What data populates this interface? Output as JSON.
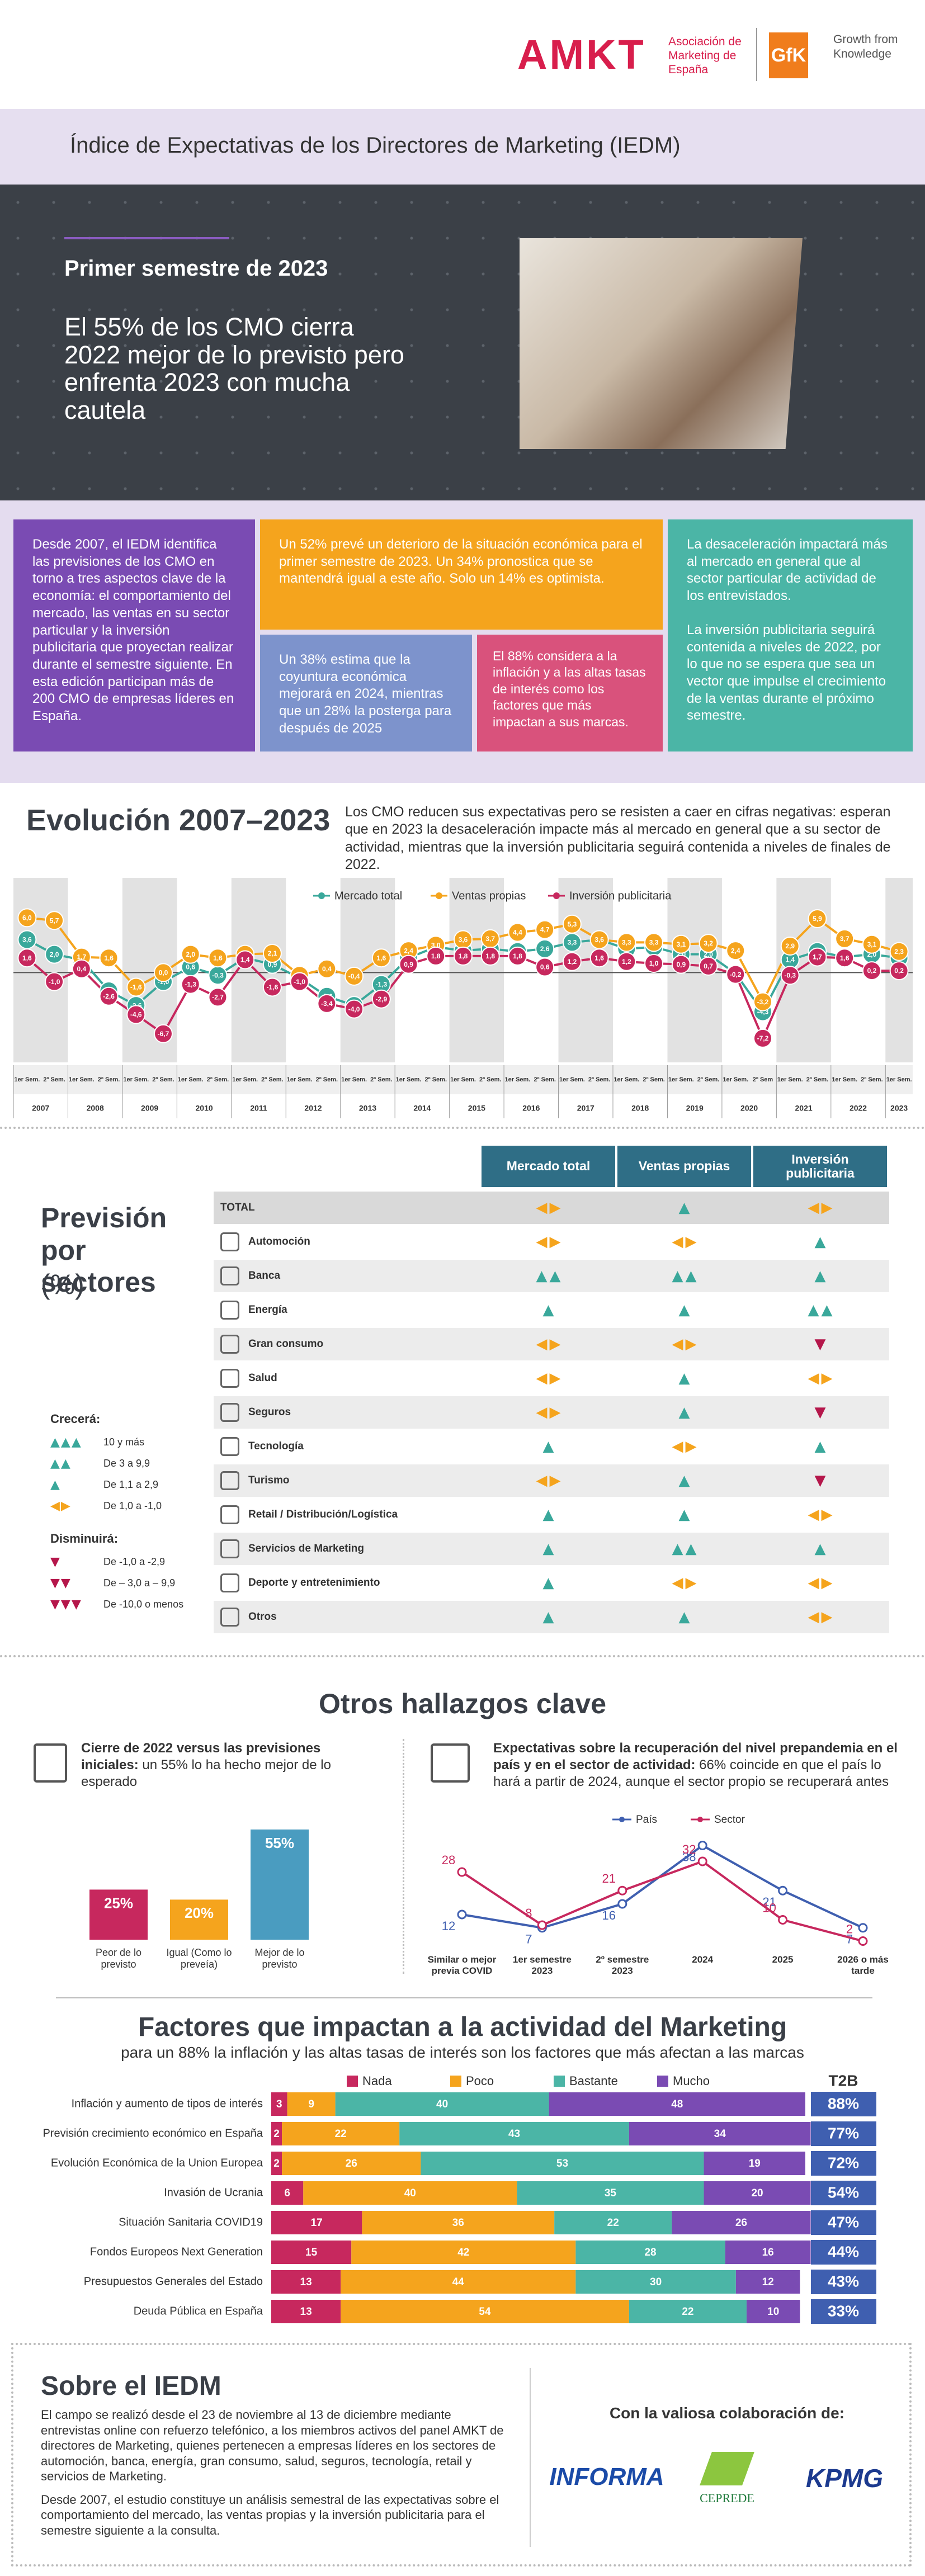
{
  "header": {
    "brand": "AMKT",
    "brand_caption": "Asociación de Marketing de España",
    "partner": "GfK",
    "partner_caption": "Growth from Knowledge"
  },
  "title": "Índice de Expectativas de los Directores de Marketing (IEDM)",
  "hero": {
    "kicker": "Primer semestre de 2023",
    "headline": "El 55% de los CMO cierra 2022 mejor de lo previsto pero enfrenta 2023 con mucha cautela"
  },
  "highlights": {
    "intro": "Desde 2007, el IEDM identifica las previsiones de los CMO en torno a tres aspectos clave de la economía: el comportamiento del mercado, las ventas en su sector particular y la inversión publicitaria que proyectan realizar durante el semestre siguiente. En esta edición participan más de 200 CMO de empresas líderes en España.",
    "economy_2023": "Un 52% prevé un deterioro de la situación económica para el primer semestre de 2023. Un 34% pronostica que se mantendrá igual a este año. Solo un 14% es optimista.",
    "economy_2024": "Un 38% estima que la coyuntura económica mejorará en 2024, mientras que un 28% la posterga para después de 2025",
    "factors": "El 88% considera a la inflación y a las altas tasas de interés como los factores que más impactan a sus marcas.",
    "outlook": [
      "La desaceleración impactará más al mercado en general que al sector particular de actividad de los entrevistados.",
      "La inversión publicitaria seguirá contenida a niveles de 2022, por lo que no se espera que sea un vector que impulse el crecimiento de la ventas durante el próximo semestre."
    ]
  },
  "sectors": {
    "title": "Previsión por sectores",
    "unit": "(%)",
    "columns": [
      "Mercado total",
      "Ventas propias",
      "Inversión publicitaria"
    ],
    "rows": [
      {
        "label": "TOTAL",
        "cells": [
          "◀▶",
          "▲",
          "◀▶"
        ]
      },
      {
        "label": "Automoción",
        "cells": [
          "◀▶",
          "◀▶",
          "▲"
        ]
      },
      {
        "label": "Banca",
        "cells": [
          "▲▲",
          "▲▲",
          "▲"
        ]
      },
      {
        "label": "Energía",
        "cells": [
          "▲",
          "▲",
          "▲▲"
        ]
      },
      {
        "label": "Gran consumo",
        "cells": [
          "◀▶",
          "◀▶",
          "▼"
        ]
      },
      {
        "label": "Salud",
        "cells": [
          "◀▶",
          "▲",
          "◀▶"
        ]
      },
      {
        "label": "Seguros",
        "cells": [
          "◀▶",
          "▲",
          "▼"
        ]
      },
      {
        "label": "Tecnología",
        "cells": [
          "▲",
          "◀▶",
          "▲"
        ]
      },
      {
        "label": "Turismo",
        "cells": [
          "◀▶",
          "▲",
          "▼"
        ]
      },
      {
        "label": "Retail / Distribución/Logística",
        "cells": [
          "▲",
          "▲",
          "◀▶"
        ]
      },
      {
        "label": "Servicios de Marketing",
        "cells": [
          "▲",
          "▲▲",
          "▲"
        ]
      },
      {
        "label": "Deporte y entretenimiento",
        "cells": [
          "▲",
          "◀▶",
          "◀▶"
        ]
      },
      {
        "label": "Otros",
        "cells": [
          "▲",
          "▲",
          "◀▶"
        ]
      }
    ],
    "legend": [
      {
        "title": "Crecerá:",
        "items": [
          {
            "symbol": "▲▲▲",
            "label": "10 y más",
            "color": "#3aa89b"
          },
          {
            "symbol": "▲▲",
            "label": "De 3 a 9,9",
            "color": "#3aa89b"
          },
          {
            "symbol": "▲",
            "label": "De 1,1 a 2,9",
            "color": "#3aa89b"
          },
          {
            "symbol": "◀▶",
            "label": "De 1,0 a -1,0",
            "color": "#f5a41d"
          }
        ]
      },
      {
        "title": "Disminuirá:",
        "items": [
          {
            "symbol": "▼",
            "label": "De -1,0 a -2,9",
            "color": "#b5174b"
          },
          {
            "symbol": "▼▼",
            "label": "De – 3,0 a – 9,9",
            "color": "#b5174b"
          },
          {
            "symbol": "▼▼▼",
            "label": "De -10,0 o menos",
            "color": "#b5174b"
          }
        ]
      }
    ]
  },
  "findings": {
    "title": "Otros hallazgos clave"
  },
  "about": {
    "title": "Sobre el IEDM",
    "paragraphs": [
      "El campo se realizó desde el 23 de noviembre al 13 de diciembre mediante entrevistas online con refuerzo telefónico, a los miembros activos del panel AMKT de directores de Marketing, quienes pertenecen a empresas líderes en los sectores de automoción, banca, energía, gran consumo, salud, seguros, tecnología, retail y servicios de Marketing.",
      "Desde 2007, el estudio constituye un análisis semestral de las expectativas sobre el comportamiento del mercado, las ventas propias y la inversión publicitaria para el semestre siguiente a la consulta."
    ]
  },
  "sponsors": {
    "title": "Con la valiosa colaboración de:",
    "logos": [
      "INFORMA",
      "CEPREDE",
      "KPMG"
    ]
  },
  "chart_data": [
    {
      "type": "line",
      "title": "Evolución 2007–2023",
      "subtitle": "Los CMO reducen sus expectativas pero se resisten a caer en cifras negativas: esperan que en 2023 la desaceleración impacte más al mercado en general que a su sector de actividad, mientras que la inversión publicitaria seguirá contenida a niveles de finales de 2022.",
      "categories": [
        "1er Sem.",
        "2º Sem.",
        "1er Sem.",
        "2º Sem.",
        "1er Sem.",
        "2º Sem.",
        "1er Sem.",
        "2º Sem.",
        "1er Sem.",
        "2º Sem.",
        "1er Sem.",
        "2º Sem.",
        "1er Sem.",
        "2º Sem.",
        "1er Sem.",
        "2º Sem.",
        "1er Sem.",
        "2º Sem.",
        "1er Sem.",
        "2º Sem.",
        "1er Sem.",
        "2º Sem.",
        "1er Sem.",
        "2º Sem.",
        "1er Sem.",
        "2º Sem.",
        "1er Sem.",
        "2º Sem",
        "1er Sem.",
        "2º Sem.",
        "1er Sem.",
        "2º Sem.",
        "1er Sem."
      ],
      "years": [
        "2007",
        "2008",
        "2009",
        "2010",
        "2011",
        "2012",
        "2013",
        "2014",
        "2015",
        "2016",
        "2017",
        "2018",
        "2019",
        "2020",
        "2021",
        "2022",
        "2023"
      ],
      "ylim": [
        -8,
        7
      ],
      "series": [
        {
          "name": "Mercado total",
          "color": "#3aa89b",
          "values": [
            3.6,
            2.0,
            1.4,
            -2.0,
            -3.6,
            -1.0,
            0.6,
            -0.3,
            1.6,
            0.9,
            -0.6,
            -2.6,
            -3.6,
            -1.3,
            1.6,
            2.8,
            2.4,
            2.6,
            2.3,
            2.6,
            3.3,
            3.6,
            2.6,
            2.8,
            2.0,
            2.0,
            -0.1,
            -4.3,
            1.4,
            2.3,
            1.7,
            2.0,
            1.6
          ],
          "value_labels": [
            "3,6",
            "2,0",
            "1,4",
            "-2,0",
            "-3,6",
            "-1,0",
            "0,6",
            "-0,3",
            "1,6",
            "0,9",
            "-0,6",
            "-2,6",
            "-3,6",
            "-1,3",
            "1,6",
            "2,8",
            "2,4",
            "2,6",
            "2,3",
            "2,6",
            "3,3",
            "3,6",
            "2,6",
            "2,8",
            "2,0",
            "2,0",
            "-0,1",
            "-4,3",
            "1,4",
            "2,3",
            "1,7",
            "2,0",
            "1,6"
          ]
        },
        {
          "name": "Ventas propias",
          "color": "#f5a41d",
          "values": [
            6.0,
            5.7,
            1.7,
            1.6,
            -1.6,
            0.0,
            2.0,
            1.6,
            2.0,
            2.1,
            -0.3,
            0.4,
            -0.4,
            1.6,
            2.4,
            3.0,
            3.6,
            3.7,
            4.4,
            4.7,
            5.3,
            3.6,
            3.3,
            3.3,
            3.1,
            3.2,
            2.4,
            -3.2,
            2.9,
            5.9,
            3.7,
            3.1,
            2.3
          ],
          "value_labels": [
            "6,0",
            "5,7",
            "1,7",
            "1,6",
            "-1,6",
            "0,0",
            "2,0",
            "1,6",
            "2,0",
            "2,1",
            "-0,3",
            "0,4",
            "-0,4",
            "1,6",
            "2,4",
            "3,0",
            "3,6",
            "3,7",
            "4,4",
            "4,7",
            "5,3",
            "3,6",
            "3,3",
            "3,3",
            "3,1",
            "3,2",
            "2,4",
            "-3,2",
            "2,9",
            "5,9",
            "3,7",
            "3,1",
            "2,3"
          ]
        },
        {
          "name": "Inversión publicitaria",
          "color": "#c7285e",
          "values": [
            1.6,
            -1.0,
            0.4,
            -2.6,
            -4.6,
            -6.7,
            -1.3,
            -2.7,
            1.4,
            -1.6,
            -1.0,
            -3.4,
            -4.0,
            -2.9,
            0.9,
            1.8,
            1.8,
            1.8,
            1.8,
            0.6,
            1.2,
            1.6,
            1.2,
            1.0,
            0.9,
            0.7,
            -0.2,
            -7.2,
            -0.3,
            1.7,
            1.6,
            0.2,
            0.2
          ],
          "value_labels": [
            "1,6",
            "-1,0",
            "0,4",
            "-2,6",
            "-4,6",
            "-6,7",
            "-1,3",
            "-2,7",
            "1,4",
            "-1,6",
            "-1,0",
            "-3,4",
            "-4,0",
            "-2,9",
            "0,9",
            "1,8",
            "1,8",
            "1,8",
            "1,8",
            "0,6",
            "1,2",
            "1,6",
            "1,2",
            "1,0",
            "0,9",
            "0,7",
            "-0,2",
            "-7,2",
            "-0,3",
            "1,7",
            "1,6",
            "0,2",
            "0,2"
          ]
        }
      ]
    },
    {
      "type": "bar",
      "title": "Cierre de 2022 versus las previsiones iniciales:",
      "subtitle": "un 55% lo ha hecho mejor de lo esperado",
      "categories": [
        "Peor de lo previsto",
        "Igual (Como lo preveía)",
        "Mejor de lo previsto"
      ],
      "values": [
        25,
        20,
        55
      ],
      "value_labels": [
        "25%",
        "20%",
        "55%"
      ],
      "colors": [
        "#c7285e",
        "#f5a41d",
        "#4a9cc0"
      ],
      "ylim": [
        0,
        60
      ]
    },
    {
      "type": "line",
      "title": "Expectativas sobre la recuperación del nivel prepandemia en el país y en el sector de actividad:",
      "subtitle": "66% coincide en que el país lo hará a partir de 2024, aunque el sector propio se recuperará antes",
      "categories": [
        "Similar o mejor previa COVID",
        "1er semestre 2023",
        "2º semestre 2023",
        "2024",
        "2025",
        "2026 o más tarde"
      ],
      "ylim": [
        0,
        40
      ],
      "series": [
        {
          "name": "País",
          "color": "#3f5fb0",
          "values": [
            12,
            7,
            16,
            38,
            21,
            7
          ]
        },
        {
          "name": "Sector",
          "color": "#c7285e",
          "values": [
            28,
            8,
            21,
            32,
            10,
            2
          ]
        }
      ]
    },
    {
      "type": "stacked_bar",
      "orientation": "horizontal",
      "title": "Factores que impactan a la actividad del Marketing",
      "subtitle": "para un 88% la inflación y las altas tasas de interés son los factores que más afectan a las marcas",
      "categories": [
        "Inflación y aumento de tipos de interés",
        "Previsión crecimiento económico en España",
        "Evolución Económica de la Union Europea",
        "Invasión de Ucrania",
        "Situación Sanitaria COVID19",
        "Fondos Europeos Next Generation",
        "Presupuestos Generales del Estado",
        "Deuda Pública en España"
      ],
      "xlim": [
        0,
        100
      ],
      "series": [
        {
          "name": "Nada",
          "color": "#c7285e",
          "values": [
            3,
            2,
            2,
            6,
            17,
            15,
            13,
            13
          ]
        },
        {
          "name": "Poco",
          "color": "#f5a41d",
          "values": [
            9,
            22,
            26,
            40,
            36,
            42,
            44,
            54
          ]
        },
        {
          "name": "Bastante",
          "color": "#4bb5a6",
          "values": [
            40,
            43,
            53,
            35,
            22,
            28,
            30,
            22
          ]
        },
        {
          "name": "Mucho",
          "color": "#7a4bb3",
          "values": [
            48,
            34,
            19,
            20,
            26,
            16,
            12,
            10
          ]
        }
      ],
      "t2b": {
        "title": "T2B",
        "color": "#3f5fb0",
        "values": [
          88,
          77,
          72,
          54,
          47,
          44,
          43,
          33
        ],
        "value_labels": [
          "88%",
          "77%",
          "72%",
          "54%",
          "47%",
          "44%",
          "43%",
          "33%"
        ]
      }
    }
  ]
}
